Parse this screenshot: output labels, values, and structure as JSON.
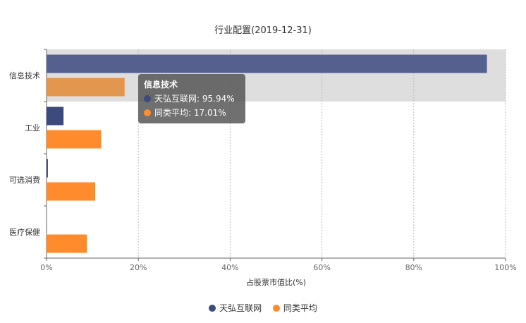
{
  "chart_data": {
    "type": "bar",
    "orientation": "horizontal",
    "title": "行业配置(2019-12-31)",
    "xlabel": "占股票市值比(%)",
    "ylabel": "",
    "xlim": [
      0,
      100
    ],
    "x_ticks": [
      "0%",
      "20%",
      "40%",
      "60%",
      "80%",
      "100%"
    ],
    "categories": [
      "信息技术",
      "工业",
      "可选消费",
      "医疗保健"
    ],
    "series": [
      {
        "name": "天弘互联网",
        "color": "#3c4a7e",
        "values": [
          95.94,
          3.7,
          0.3,
          0.0
        ]
      },
      {
        "name": "同类平均",
        "color": "#ff8b2d",
        "values": [
          17.01,
          11.9,
          10.6,
          8.8
        ]
      }
    ],
    "highlighted_category": "信息技术",
    "grid": true,
    "legend_position": "bottom",
    "tooltip": {
      "title": "信息技术",
      "rows": [
        {
          "label": "天弘互联网: 95.94%",
          "color": "#3c4a7e"
        },
        {
          "label": "同类平均: 17.01%",
          "color": "#ff8b2d"
        }
      ]
    }
  }
}
